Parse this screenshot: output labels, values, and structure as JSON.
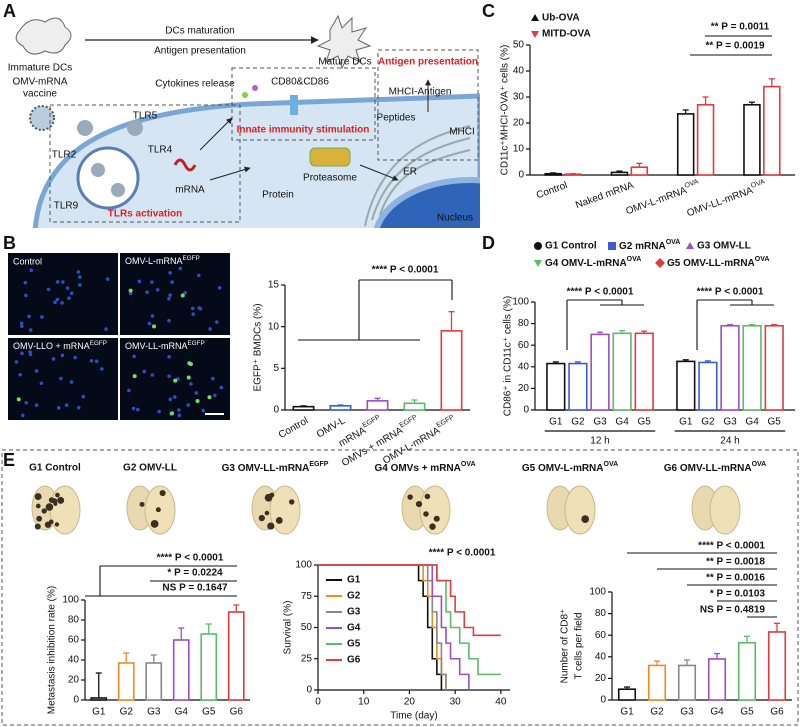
{
  "panel_labels": [
    "A",
    "B",
    "C",
    "D",
    "E"
  ],
  "diagram": {
    "immature": "Immature DCs",
    "maturation": "DCs maturation",
    "presentation_top": "Antigen presentation",
    "mature": "Mature DCs",
    "vaccine": {
      "line1": "OMV-mRNA",
      "line2": "vaccine"
    },
    "cytokines": "Cytokines release",
    "cd80": "CD80&CD86",
    "presentation_box": "Antigen presentation",
    "mhci_antigen": "MHCI-Antigen",
    "peptides": "Peptides",
    "mhci": "MHCI",
    "innate": "Innate immunity stimulation",
    "tlr5": "TLR5",
    "tlr2": "TLR2",
    "tlr4": "TLR4",
    "tlr9": "TLR9",
    "mrna": "mRNA",
    "protein": "Protein",
    "proteasome": "Proteasome",
    "er": "ER",
    "nucleus": "Nucleus",
    "tlrs": "TLRs activation"
  },
  "micrographs": [
    "Control",
    [
      "OMV-L-mRNA",
      "EGFP"
    ],
    [
      "OMV-LLO + mRNA",
      "EGFP"
    ],
    [
      "OMV-LL-mRNA",
      "EGFP"
    ]
  ],
  "lungs": [
    "G1 Control",
    "G2 OMV-LL",
    [
      "G3 OMV-LL-mRNA",
      "EGFP"
    ],
    [
      "G4 OMVs + mRNA",
      "OVA"
    ],
    [
      "G5 OMV-L-mRNA",
      "OVA"
    ],
    [
      "G6 OMV-LL-mRNA",
      "OVA"
    ]
  ],
  "chart_data": [
    {
      "type": "bar",
      "ylabel": "EGFP⁺ BMDCs (%)",
      "categories": [
        "Control",
        "OMV-L",
        [
          "mRNA",
          "EGFP"
        ],
        [
          "OMVs + mRNA",
          "EGFP"
        ],
        [
          "OMV-L-mRNA",
          "EGFP"
        ]
      ],
      "values": [
        0.4,
        0.5,
        1.1,
        0.8,
        9.5
      ],
      "errors": [
        0.1,
        0.1,
        0.3,
        0.4,
        2.3
      ],
      "colors": [
        "#111111",
        "#3b5bd6",
        "#9b4fc4",
        "#5cba6a",
        "#e23b3f"
      ],
      "ylim": [
        0,
        15
      ],
      "yticks": [
        0,
        5,
        10,
        15
      ],
      "annotations": [
        "**** P < 0.0001"
      ]
    },
    {
      "type": "grouped_bar",
      "ylabel": "CD11c⁺MHCI-OVA⁺ cells (%)",
      "categories": [
        "Control",
        "Naked mRNA",
        [
          "OMV-L-mRNA",
          "OVA"
        ],
        [
          "OMV-LL-mRNA",
          "OVA"
        ]
      ],
      "series": [
        {
          "name": "Ub-OVA",
          "color": "#111111",
          "marker": "triangle-up",
          "values": [
            0.5,
            1,
            23.5,
            27
          ],
          "errors": [
            0.3,
            0.5,
            1.5,
            1
          ]
        },
        {
          "name": "MITD-OVA",
          "color": "#e23b3f",
          "marker": "triangle-down",
          "values": [
            0.3,
            3,
            27,
            34
          ],
          "errors": [
            0.2,
            1.5,
            3,
            3
          ]
        }
      ],
      "ylim": [
        0,
        50
      ],
      "yticks": [
        0,
        10,
        20,
        30,
        40,
        50
      ],
      "annotations": [
        "** P = 0.0011",
        "** P = 0.0019"
      ]
    },
    {
      "type": "grouped_bar",
      "ylabel": "CD86⁺ in CD11c⁺ cells (%)",
      "categories": [
        "12 h",
        "24 h"
      ],
      "tick_labels": [
        "G1",
        "G2",
        "G3",
        "G4",
        "G5"
      ],
      "series": [
        {
          "name": "G1 Control",
          "color": "#111111",
          "marker": "circle",
          "values": [
            43,
            45
          ],
          "errors": [
            1.5,
            1.5
          ]
        },
        {
          "name": [
            "G2 mRNA",
            "OVA"
          ],
          "color": "#3b5bd6",
          "marker": "square",
          "values": [
            43,
            44
          ],
          "errors": [
            1.5,
            1.5
          ]
        },
        {
          "name": "G3 OMV-LL",
          "color": "#9b4fc4",
          "marker": "triangle-up",
          "values": [
            70,
            78
          ],
          "errors": [
            2,
            1
          ]
        },
        {
          "name": [
            "G4 OMV-L-mRNA",
            "OVA"
          ],
          "color": "#5cba6a",
          "marker": "triangle-down",
          "values": [
            71,
            78
          ],
          "errors": [
            2.5,
            1
          ]
        },
        {
          "name": [
            "G5 OMV-LL-mRNA",
            "OVA"
          ],
          "color": "#e23b3f",
          "marker": "diamond",
          "values": [
            71,
            78
          ],
          "errors": [
            2,
            1
          ]
        }
      ],
      "ylim": [
        0,
        100
      ],
      "yticks": [
        0,
        20,
        40,
        60,
        80,
        100
      ],
      "annotations": [
        "**** P < 0.0001",
        "**** P < 0.0001"
      ]
    },
    {
      "type": "bar",
      "ylabel": "Metastasis inhibition rate (%)",
      "categories": [
        "G1",
        "G2",
        "G3",
        "G4",
        "G5",
        "G6"
      ],
      "values": [
        2,
        37,
        37,
        60,
        66,
        88
      ],
      "errors": [
        25,
        10,
        8,
        12,
        10,
        7
      ],
      "colors": [
        "#111111",
        "#f08a24",
        "#888888",
        "#9b4fc4",
        "#5cba6a",
        "#e23b3f"
      ],
      "ylim": [
        0,
        100
      ],
      "yticks": [
        0,
        20,
        40,
        60,
        80,
        100
      ],
      "annotations": [
        "**** P < 0.0001",
        "* P = 0.0224",
        "NS P = 0.1647"
      ]
    },
    {
      "type": "line",
      "xlabel": "Time (day)",
      "ylabel": "Survival (%)",
      "series": [
        {
          "name": "G1",
          "color": "#111111",
          "x": [
            0,
            22,
            23,
            24,
            25,
            26,
            27
          ],
          "values": [
            100,
            87.5,
            75,
            50,
            25,
            12.5,
            0
          ]
        },
        {
          "name": "G2",
          "color": "#f08a24",
          "x": [
            0,
            23,
            24,
            25,
            26,
            27,
            28
          ],
          "values": [
            100,
            87.5,
            75,
            50,
            25,
            12.5,
            0
          ]
        },
        {
          "name": "G3",
          "color": "#888888",
          "x": [
            0,
            24,
            25,
            26,
            27,
            28
          ],
          "values": [
            100,
            87.5,
            62.5,
            37.5,
            12.5,
            0
          ]
        },
        {
          "name": "G4",
          "color": "#9b4fc4",
          "x": [
            0,
            25,
            27,
            28,
            29,
            31,
            33
          ],
          "values": [
            100,
            75,
            50,
            37.5,
            25,
            12.5,
            0
          ]
        },
        {
          "name": "G5",
          "color": "#5cba6a",
          "x": [
            0,
            26,
            28,
            29,
            31,
            33,
            35,
            40
          ],
          "values": [
            100,
            87.5,
            62.5,
            50,
            37.5,
            25,
            12.5,
            12.5
          ]
        },
        {
          "name": "G6",
          "color": "#e23b3f",
          "x": [
            0,
            26,
            29,
            30,
            32,
            34,
            36,
            40
          ],
          "values": [
            100,
            87.5,
            75,
            62.5,
            50,
            43.75,
            43.75,
            43.75
          ]
        }
      ],
      "xlim": [
        0,
        42
      ],
      "xticks": [
        0,
        10,
        20,
        30,
        40
      ],
      "ylim": [
        0,
        100
      ],
      "yticks": [
        0,
        25,
        50,
        75,
        100
      ],
      "annotations": [
        "**** P < 0.0001"
      ]
    },
    {
      "type": "bar",
      "ylabel": [
        "Number of CD8⁺",
        "T cells per field"
      ],
      "categories": [
        "G1",
        "G2",
        "G3",
        "G4",
        "G5",
        "G6"
      ],
      "values": [
        10,
        32,
        32,
        38,
        53,
        63
      ],
      "errors": [
        2,
        4,
        5,
        5,
        6,
        8
      ],
      "colors": [
        "#111111",
        "#f08a24",
        "#888888",
        "#9b4fc4",
        "#5cba6a",
        "#e23b3f"
      ],
      "ylim": [
        0,
        100
      ],
      "yticks": [
        0,
        20,
        40,
        60,
        80,
        100
      ],
      "annotations": [
        "**** P < 0.0001",
        "** P = 0.0018",
        "** P = 0.0016",
        "* P = 0.0103",
        "NS P = 0.4819"
      ]
    }
  ]
}
